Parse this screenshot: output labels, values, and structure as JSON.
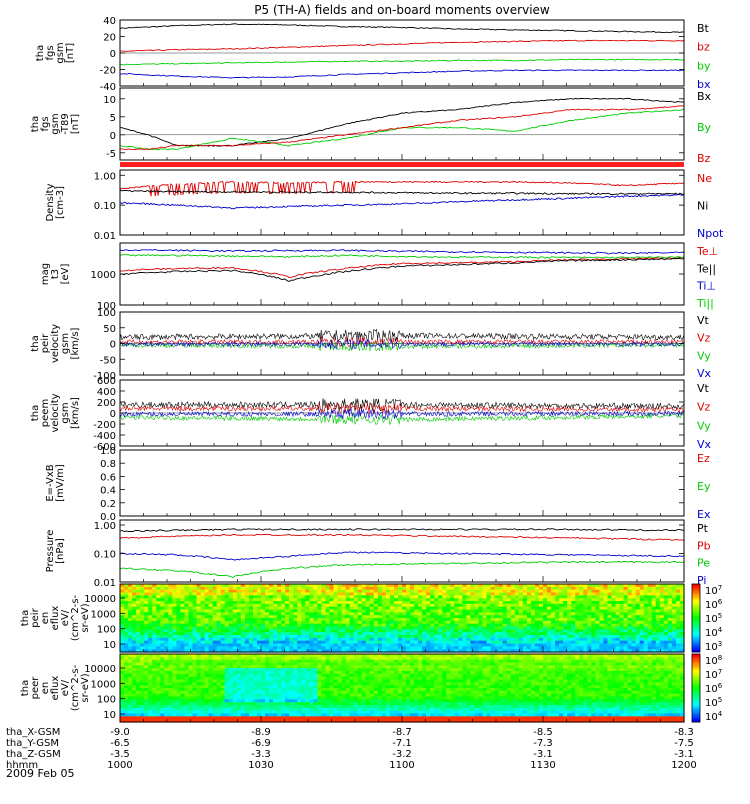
{
  "title": "P5 (TH-A) fields and on-board moments overview",
  "date": "2009 Feb 05",
  "colors": {
    "black": "#000000",
    "red": "#dd0000",
    "green": "#00cc00",
    "blue": "#0000cc",
    "bar": "#ff2020"
  },
  "chart_data": [
    {
      "id": "fgs-gsm",
      "type": "line",
      "ylabel": [
        "tha",
        "fgs",
        "gsm",
        "[nT]"
      ],
      "yticks": [
        "40",
        "20",
        "0",
        "-20",
        "-40"
      ],
      "ylim": [
        -40,
        40
      ],
      "legend": [
        "Bt",
        "bz",
        "by",
        "bx"
      ],
      "legend_colors": [
        "black",
        "red",
        "green",
        "blue"
      ],
      "series": [
        {
          "name": "Bt",
          "x": [
            0,
            0.1,
            0.2,
            0.3,
            0.4,
            0.5,
            0.6,
            0.7,
            0.8,
            0.9,
            1.0
          ],
          "y": [
            30,
            33,
            35,
            34,
            32,
            31,
            29,
            28,
            27,
            26,
            25
          ]
        },
        {
          "name": "bz",
          "x": [
            0,
            0.1,
            0.2,
            0.3,
            0.4,
            0.5,
            0.6,
            0.7,
            0.8,
            0.9,
            1.0
          ],
          "y": [
            2,
            4,
            5,
            7,
            9,
            11,
            13,
            14,
            15,
            15,
            15
          ]
        },
        {
          "name": "by",
          "x": [
            0,
            0.1,
            0.2,
            0.3,
            0.4,
            0.5,
            0.6,
            0.7,
            0.8,
            0.9,
            1.0
          ],
          "y": [
            -14,
            -13,
            -12,
            -11,
            -10,
            -10,
            -9,
            -9,
            -8,
            -8,
            -8
          ]
        },
        {
          "name": "bx",
          "x": [
            0,
            0.1,
            0.2,
            0.3,
            0.4,
            0.5,
            0.6,
            0.7,
            0.8,
            0.9,
            1.0
          ],
          "y": [
            -25,
            -28,
            -30,
            -29,
            -26,
            -24,
            -22,
            -21,
            -21,
            -21,
            -21
          ]
        }
      ]
    },
    {
      "id": "fgs-gsm-t89",
      "type": "line",
      "ylabel": [
        "tha",
        "fgs",
        "gsm",
        "-T89",
        "[nT]"
      ],
      "yticks": [
        "10",
        "5",
        "0",
        "-5"
      ],
      "ylim": [
        -7,
        13
      ],
      "legend": [
        "Bx",
        "By",
        "Bz"
      ],
      "legend_colors": [
        "black",
        "green",
        "red"
      ],
      "series": [
        {
          "name": "Bx",
          "x": [
            0,
            0.05,
            0.1,
            0.2,
            0.3,
            0.4,
            0.5,
            0.6,
            0.7,
            0.8,
            0.9,
            1.0
          ],
          "y": [
            2,
            0,
            -3,
            -3,
            -1,
            3,
            6,
            7,
            9,
            10,
            10,
            9
          ]
        },
        {
          "name": "By",
          "x": [
            0,
            0.05,
            0.1,
            0.2,
            0.3,
            0.4,
            0.5,
            0.6,
            0.7,
            0.8,
            0.9,
            1.0
          ],
          "y": [
            -3,
            -4,
            -4,
            -1,
            -3,
            -1,
            2,
            2,
            1,
            4,
            6,
            7
          ]
        },
        {
          "name": "Bz",
          "x": [
            0,
            0.05,
            0.1,
            0.2,
            0.3,
            0.4,
            0.5,
            0.6,
            0.7,
            0.8,
            0.9,
            1.0
          ],
          "y": [
            -4,
            -4,
            -3,
            -3,
            -2,
            0,
            2,
            4,
            5,
            7,
            7,
            8
          ]
        }
      ]
    },
    {
      "id": "density",
      "type": "line",
      "scale": "log",
      "ylabel": [
        "Density",
        "[cm-3]"
      ],
      "yticks": [
        "1.00",
        "0.10",
        "0.01"
      ],
      "ylim": [
        0.01,
        1.5
      ],
      "legend": [
        "Ne",
        "Ni",
        "Npot"
      ],
      "legend_colors": [
        "red",
        "black",
        "blue"
      ],
      "series": [
        {
          "name": "Ne",
          "x": [
            0,
            0.1,
            0.2,
            0.3,
            0.4,
            0.5,
            0.6,
            0.7,
            0.8,
            0.9,
            1.0
          ],
          "y": [
            0.35,
            0.5,
            0.6,
            0.55,
            0.6,
            0.6,
            0.6,
            0.6,
            0.55,
            0.45,
            0.55
          ]
        },
        {
          "name": "Ni",
          "x": [
            0,
            0.1,
            0.2,
            0.3,
            0.4,
            0.5,
            0.6,
            0.7,
            0.8,
            0.9,
            1.0
          ],
          "y": [
            0.3,
            0.28,
            0.28,
            0.27,
            0.27,
            0.26,
            0.25,
            0.25,
            0.24,
            0.24,
            0.24
          ]
        },
        {
          "name": "Npot",
          "x": [
            0,
            0.1,
            0.2,
            0.3,
            0.4,
            0.5,
            0.6,
            0.7,
            0.8,
            0.9,
            1.0
          ],
          "y": [
            0.12,
            0.1,
            0.08,
            0.09,
            0.1,
            0.11,
            0.13,
            0.15,
            0.17,
            0.2,
            0.22
          ]
        }
      ]
    },
    {
      "id": "mag-temp",
      "type": "line",
      "scale": "log",
      "ylabel": [
        "mag",
        "t3",
        "[eV]"
      ],
      "yticks": [
        "1000",
        "100"
      ],
      "ylim": [
        100,
        10000
      ],
      "legend": [
        "Te⊥",
        "Te||",
        "Ti⊥",
        "Ti||"
      ],
      "legend_colors": [
        "red",
        "black",
        "blue",
        "green"
      ],
      "series": [
        {
          "name": "Te⊥",
          "x": [
            0,
            0.1,
            0.2,
            0.3,
            0.4,
            0.5,
            0.6,
            0.7,
            0.8,
            0.9,
            1.0
          ],
          "y": [
            1300,
            1500,
            1600,
            800,
            1500,
            2200,
            2300,
            2500,
            2900,
            3100,
            3300
          ]
        },
        {
          "name": "Te||",
          "x": [
            0,
            0.1,
            0.2,
            0.3,
            0.4,
            0.5,
            0.6,
            0.7,
            0.8,
            0.9,
            1.0
          ],
          "y": [
            1000,
            1200,
            1300,
            600,
            1200,
            1800,
            2000,
            2300,
            2700,
            2900,
            3100
          ]
        },
        {
          "name": "Ti⊥",
          "x": [
            0,
            0.1,
            0.2,
            0.3,
            0.4,
            0.5,
            0.6,
            0.7,
            0.8,
            0.9,
            1.0
          ],
          "y": [
            6000,
            5800,
            5500,
            5700,
            5800,
            5400,
            5200,
            5000,
            4800,
            4700,
            4900
          ]
        },
        {
          "name": "Ti||",
          "x": [
            0,
            0.1,
            0.2,
            0.3,
            0.4,
            0.5,
            0.6,
            0.7,
            0.8,
            0.9,
            1.0
          ],
          "y": [
            4000,
            4000,
            3800,
            3600,
            4000,
            3700,
            3500,
            3500,
            3400,
            3400,
            3500
          ]
        }
      ]
    },
    {
      "id": "peir-velocity",
      "type": "line",
      "ylabel": [
        "tha",
        "peir",
        "velocity",
        "gsm",
        "[km/s]"
      ],
      "yticks": [
        "100",
        "50",
        "0",
        "-50",
        "-100"
      ],
      "ylim": [
        -100,
        100
      ],
      "legend": [
        "Vt",
        "Vz",
        "Vy",
        "Vx"
      ],
      "legend_colors": [
        "black",
        "red",
        "green",
        "blue"
      ],
      "series": [
        {
          "name": "Vt",
          "x": [
            0,
            0.5,
            1.0
          ],
          "y": [
            20,
            25,
            20
          ]
        },
        {
          "name": "Vz",
          "x": [
            0,
            0.5,
            1.0
          ],
          "y": [
            5,
            5,
            5
          ]
        },
        {
          "name": "Vy",
          "x": [
            0,
            0.5,
            1.0
          ],
          "y": [
            -5,
            -10,
            -5
          ]
        },
        {
          "name": "Vx",
          "x": [
            0,
            0.5,
            1.0
          ],
          "y": [
            -2,
            -2,
            -2
          ]
        }
      ]
    },
    {
      "id": "peem-velocity",
      "type": "line",
      "ylabel": [
        "tha",
        "peem",
        "velocity",
        "gsm",
        "[km/s]"
      ],
      "yticks": [
        "600",
        "400",
        "200",
        "0",
        "-200",
        "-400",
        "-600"
      ],
      "ylim": [
        -600,
        600
      ],
      "legend": [
        "Vt",
        "Vz",
        "Vy",
        "Vx"
      ],
      "legend_colors": [
        "black",
        "red",
        "green",
        "blue"
      ],
      "series": [
        {
          "name": "Vt",
          "x": [
            0,
            0.5,
            1.0
          ],
          "y": [
            150,
            150,
            120
          ]
        },
        {
          "name": "Vz",
          "x": [
            0,
            0.5,
            1.0
          ],
          "y": [
            80,
            80,
            60
          ]
        },
        {
          "name": "Vy",
          "x": [
            0,
            0.5,
            1.0
          ],
          "y": [
            -80,
            -120,
            -50
          ]
        },
        {
          "name": "Vx",
          "x": [
            0,
            0.5,
            1.0
          ],
          "y": [
            -20,
            -20,
            -10
          ]
        }
      ]
    },
    {
      "id": "e-vxb",
      "type": "line",
      "ylabel": [
        "E=-VxB",
        "[mV/m]"
      ],
      "yticks": [
        "1.0",
        "0.8",
        "0.6",
        "0.4",
        "0.2",
        "0.0"
      ],
      "ylim": [
        0,
        1
      ],
      "legend": [
        "Ez",
        "Ey",
        "Ex"
      ],
      "legend_colors": [
        "red",
        "green",
        "blue"
      ],
      "series": []
    },
    {
      "id": "pressure",
      "type": "line",
      "scale": "log",
      "ylabel": [
        "Pressure",
        "[nPa]"
      ],
      "yticks": [
        "1.00",
        "0.10",
        "0.01"
      ],
      "ylim": [
        0.01,
        1.5
      ],
      "legend": [
        "Pt",
        "Pb",
        "Pe",
        "Pi"
      ],
      "legend_colors": [
        "black",
        "red",
        "green",
        "blue"
      ],
      "series": [
        {
          "name": "Pt",
          "x": [
            0,
            0.2,
            0.4,
            0.6,
            0.8,
            1.0
          ],
          "y": [
            0.6,
            0.7,
            0.7,
            0.7,
            0.7,
            0.65
          ]
        },
        {
          "name": "Pb",
          "x": [
            0,
            0.2,
            0.4,
            0.6,
            0.8,
            1.0
          ],
          "y": [
            0.35,
            0.45,
            0.45,
            0.4,
            0.35,
            0.3
          ]
        },
        {
          "name": "Pe",
          "x": [
            0,
            0.1,
            0.2,
            0.3,
            0.4,
            0.6,
            0.8,
            1.0
          ],
          "y": [
            0.03,
            0.025,
            0.015,
            0.03,
            0.04,
            0.045,
            0.05,
            0.05
          ]
        },
        {
          "name": "Pi",
          "x": [
            0,
            0.1,
            0.2,
            0.3,
            0.4,
            0.6,
            0.8,
            1.0
          ],
          "y": [
            0.1,
            0.09,
            0.06,
            0.08,
            0.11,
            0.1,
            0.09,
            0.08
          ]
        }
      ]
    },
    {
      "id": "peir-en-eflux",
      "type": "heatmap",
      "ylabel": [
        "tha",
        "peir",
        "en",
        "eflux",
        "eV/",
        "(cm^2-s-",
        "sr-eV)"
      ],
      "yticks": [
        "10000",
        "1000",
        "100",
        "10"
      ],
      "colorbar_ticks": [
        "10^7",
        "10^6",
        "10^5",
        "10^4",
        "10^3"
      ]
    },
    {
      "id": "peer-en-eflux",
      "type": "heatmap",
      "ylabel": [
        "tha",
        "peer",
        "en",
        "eflux",
        "eV/",
        "(cm^2-s-",
        "sr-eV)"
      ],
      "yticks": [
        "10000",
        "1000",
        "100",
        "10"
      ],
      "colorbar_ticks": [
        "10^8",
        "10^7",
        "10^6",
        "10^5",
        "10^4"
      ]
    }
  ],
  "x_axis": {
    "ticks": [
      "1000",
      "1030",
      "1100",
      "1130",
      "1200"
    ],
    "rows": [
      {
        "label": "tha_X-GSM",
        "values": [
          "-9.0",
          "-8.9",
          "-8.7",
          "-8.5",
          "-8.3"
        ]
      },
      {
        "label": "tha_Y-GSM",
        "values": [
          "-6.5",
          "-6.9",
          "-7.1",
          "-7.3",
          "-7.5"
        ]
      },
      {
        "label": "tha_Z-GSM",
        "values": [
          "-3.5",
          "-3.3",
          "-3.2",
          "-3.1",
          "-3.1"
        ]
      },
      {
        "label": "hhmm",
        "values": [
          "1000",
          "1030",
          "1100",
          "1130",
          "1200"
        ]
      }
    ]
  }
}
